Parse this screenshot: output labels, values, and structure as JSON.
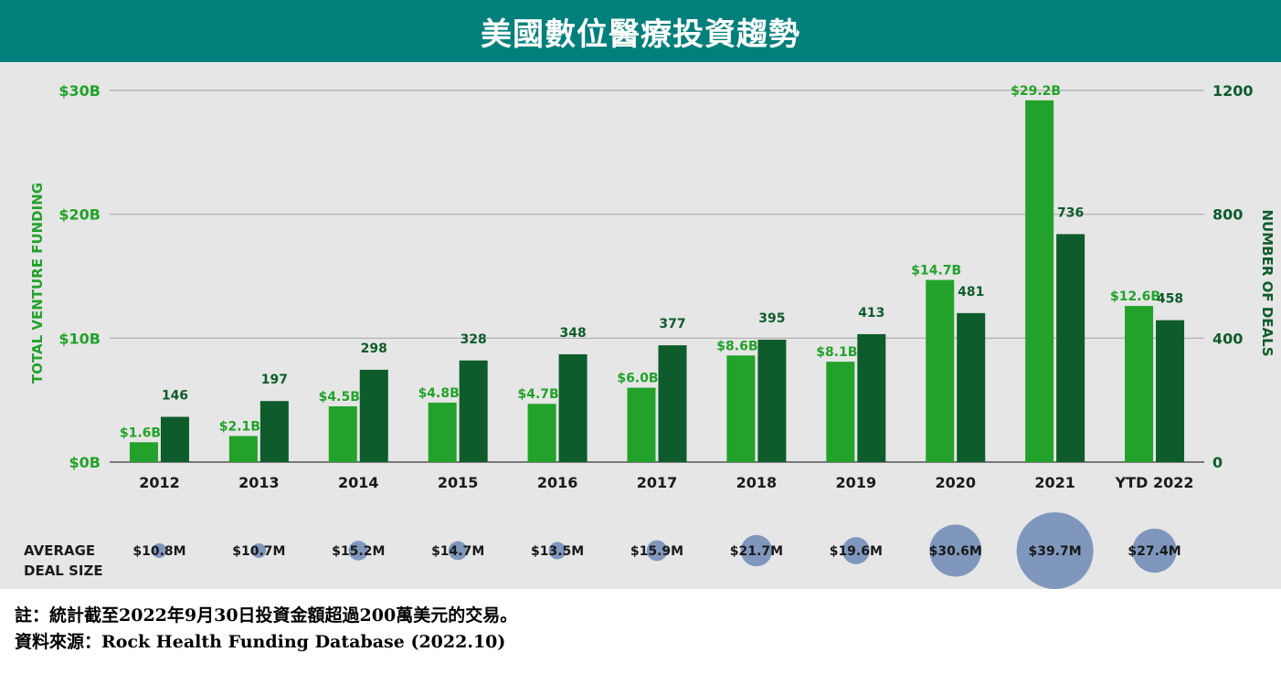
{
  "title": "美國數位醫療投資趨勢",
  "chart_data": {
    "type": "bar",
    "categories": [
      "2012",
      "2013",
      "2014",
      "2015",
      "2016",
      "2017",
      "2018",
      "2019",
      "2020",
      "2021",
      "YTD 2022"
    ],
    "series": [
      {
        "values": [
          1.6,
          2.1,
          4.5,
          4.8,
          4.7,
          6.0,
          8.6,
          8.1,
          14.7,
          29.2,
          12.6
        ],
        "labels": [
          "$1.6B",
          "$2.1B",
          "$4.5B",
          "$4.8B",
          "$4.7B",
          "$6.0B",
          "$8.6B",
          "$8.1B",
          "$14.7B",
          "$29.2B",
          "$12.6B"
        ],
        "color": "#22a22a",
        "axis": "left"
      },
      {
        "values": [
          146,
          197,
          298,
          328,
          348,
          377,
          395,
          413,
          481,
          736,
          458
        ],
        "labels": [
          "146",
          "197",
          "298",
          "328",
          "348",
          "377",
          "395",
          "413",
          "481",
          "736",
          "458"
        ],
        "color": "#0e5c2c",
        "axis": "right"
      }
    ],
    "ylabel": "TOTAL VENTURE FUNDING",
    "ylabel_right": "NUMBER OF DEALS",
    "ylim": [
      0,
      30
    ],
    "ylim_right": [
      0,
      1200
    ],
    "yticks": [
      "$0B",
      "$10B",
      "$20B",
      "$30B"
    ],
    "yticks_right": [
      "0",
      "400",
      "800",
      "1200"
    ],
    "deal_size": {
      "label_line1": "AVERAGE",
      "label_line2": "DEAL SIZE",
      "values": [
        10.8,
        10.7,
        15.2,
        14.7,
        13.5,
        15.9,
        21.7,
        19.6,
        30.6,
        39.7,
        27.4
      ],
      "labels": [
        "$10.8M",
        "$10.7M",
        "$15.2M",
        "$14.7M",
        "$13.5M",
        "$15.9M",
        "$21.7M",
        "$19.6M",
        "$30.6M",
        "$39.7M",
        "$27.4M"
      ],
      "color": "#7f97bd"
    },
    "colors": {
      "left_axis": "#22a22a",
      "right_axis": "#0e5c2c",
      "grid": "#ababab"
    },
    "grid": true
  },
  "notes": {
    "line1": "註：統計截至2022年9月30日投資金額超過200萬美元的交易。",
    "line2": "資料來源：Rock Health Funding Database (2022.10)"
  }
}
